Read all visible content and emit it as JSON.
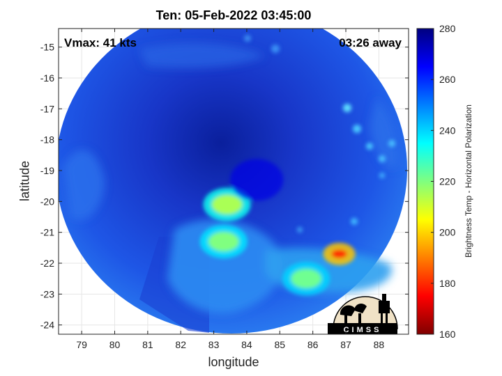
{
  "chart_data": {
    "type": "heatmap",
    "title": "Ten: 05-Feb-2022 03:45:00",
    "xlabel": "longitude",
    "ylabel": "latitude",
    "xlim": [
      78.3,
      88.9
    ],
    "ylim": [
      -24.3,
      -14.4
    ],
    "xticks": [
      79,
      80,
      81,
      82,
      83,
      84,
      85,
      86,
      87,
      88
    ],
    "yticks": [
      -15,
      -16,
      -17,
      -18,
      -19,
      -20,
      -21,
      -22,
      -23,
      -24
    ],
    "grid": true,
    "colorbar": {
      "label": "Brightness Temp - Horizontal Polarization",
      "range": [
        160,
        280
      ],
      "ticks": [
        160,
        180,
        200,
        220,
        240,
        260,
        280
      ],
      "colormap": [
        "#800000",
        "#ff0000",
        "#ffff00",
        "#00ffff",
        "#0000ff",
        "#000080"
      ]
    },
    "features": [
      {
        "lon": 83.4,
        "lat": -20.1,
        "temp": 215
      },
      {
        "lon": 83.3,
        "lat": -21.3,
        "temp": 220
      },
      {
        "lon": 86.8,
        "lat": -21.7,
        "temp": 180
      },
      {
        "lon": 85.8,
        "lat": -22.5,
        "temp": 222
      },
      {
        "lon": 84.3,
        "lat": -19.3,
        "temp": 268
      }
    ]
  },
  "annotations": {
    "vmax": "Vmax: 41 kts",
    "time_away": "03:26 away"
  },
  "logo": {
    "text": "CIMSS"
  }
}
